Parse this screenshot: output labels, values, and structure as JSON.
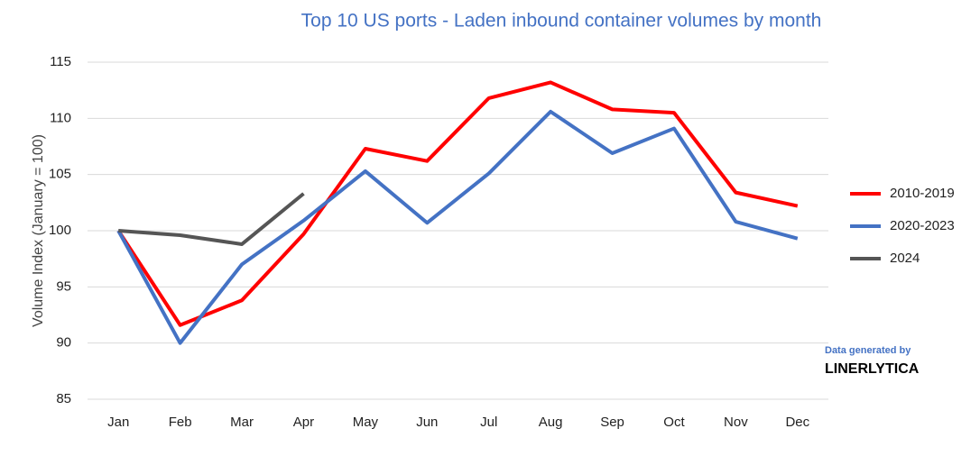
{
  "chart_data": {
    "type": "line",
    "title": "Top 10 US ports - Laden inbound container volumes by month",
    "y_label": "Volume Index (January = 100)",
    "categories": [
      "Jan",
      "Feb",
      "Mar",
      "Apr",
      "May",
      "Jun",
      "Jul",
      "Aug",
      "Sep",
      "Oct",
      "Nov",
      "Dec"
    ],
    "series": [
      {
        "name": "2010-2019",
        "color": "#ff0000",
        "values": [
          100,
          91.6,
          93.8,
          99.7,
          107.3,
          106.2,
          111.8,
          113.2,
          110.8,
          110.5,
          103.4,
          102.2
        ]
      },
      {
        "name": "2020-2023",
        "color": "#4472c4",
        "values": [
          100,
          90.0,
          97.0,
          100.9,
          105.3,
          100.7,
          105.1,
          110.6,
          106.9,
          109.1,
          100.8,
          99.3
        ]
      },
      {
        "name": "2024",
        "color": "#555555",
        "values": [
          100,
          99.6,
          98.8,
          103.3,
          null,
          null,
          null,
          null,
          null,
          null,
          null,
          null
        ]
      }
    ],
    "ylim": [
      85,
      115
    ],
    "yticks": [
      85,
      90,
      95,
      100,
      105,
      110,
      115
    ],
    "grid": true,
    "legend": "right",
    "annotations": [
      "Data generated by",
      "LINERLYTICA"
    ]
  }
}
